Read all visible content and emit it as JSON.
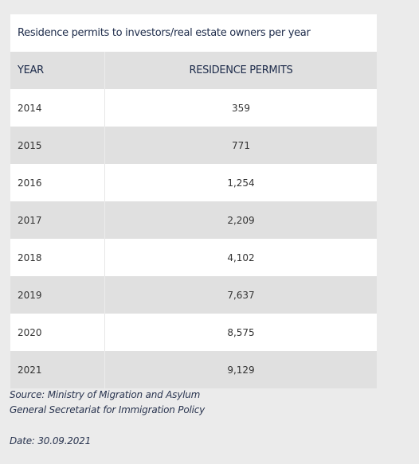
{
  "table": {
    "title": "Residence permits to investors/real estate owners per year",
    "header": [
      "YEAR",
      "RESIDENCE PERMITS"
    ],
    "rows": [
      [
        "2014",
        "359"
      ],
      [
        "2015",
        "771"
      ],
      [
        "2016",
        "1,254"
      ],
      [
        "2017",
        "2,209"
      ],
      [
        "2018",
        "4,102"
      ],
      [
        "2019",
        "7,637"
      ],
      [
        "2020",
        "8,575"
      ],
      [
        "2021",
        "9,129"
      ]
    ]
  },
  "footer": {
    "source_lines": [
      "Source: Ministry of Migration and Asylum",
      "General Secretariat for Immigration Policy"
    ],
    "date": "Date: 30.09.2021"
  }
}
